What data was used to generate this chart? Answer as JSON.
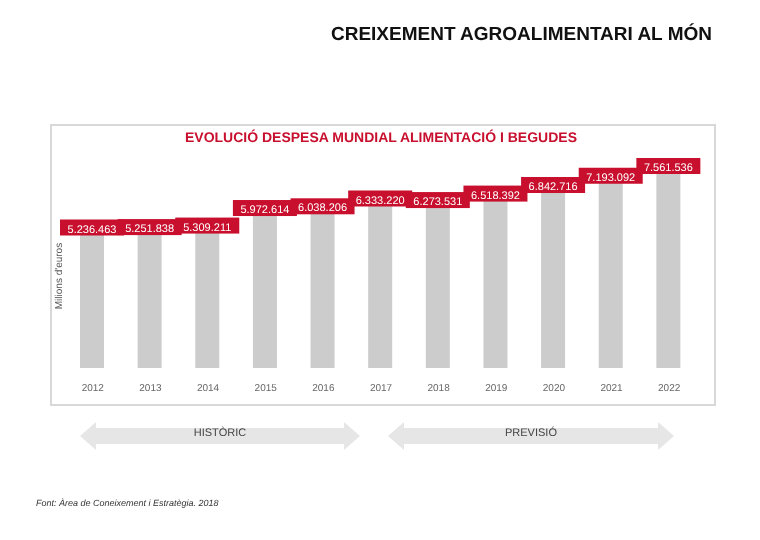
{
  "chart_data": {
    "type": "bar",
    "title": "CREIXEMENT AGROALIMENTARI AL MÓN",
    "subtitle": "EVOLUCIÓ DESPESA MUNDIAL ALIMENTACIÓ I BEGUDES",
    "ylabel": "Milions d'euros",
    "categories": [
      "2012",
      "2013",
      "2014",
      "2015",
      "2016",
      "2017",
      "2018",
      "2019",
      "2020",
      "2021",
      "2022"
    ],
    "values": [
      5236463,
      5251838,
      5309211,
      5972614,
      6038206,
      6333220,
      6273531,
      6518392,
      6842716,
      7193092,
      7561536
    ],
    "value_labels": [
      "5.236.463",
      "5.251.838",
      "5.309.211",
      "5.972.614",
      "6.038.206",
      "6.333.220",
      "6.273.531",
      "6.518.392",
      "6.842.716",
      "7.193.092",
      "7.561.536"
    ],
    "color": "#cccccc",
    "annotations": [
      "HISTÒRIC",
      "PREVISIÓ",
      "Font: Àrea de Coneixement i Estratègia. 2018"
    ],
    "grid": false,
    "legend": false
  }
}
